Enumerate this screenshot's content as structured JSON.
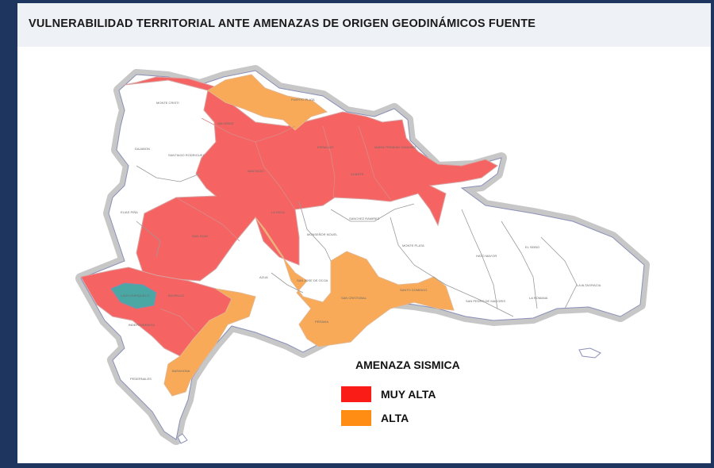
{
  "header": {
    "title": "VULNERABILIDAD TERRITORIAL ANTE AMENAZAS DE ORIGEN GEODINÁMICOS FUENTE"
  },
  "legend": {
    "title": "AMENAZA SISMICA",
    "items": [
      {
        "label": "MUY ALTA",
        "color": "#fa1c17"
      },
      {
        "label": "ALTA",
        "color": "#ff8c13"
      }
    ]
  },
  "map": {
    "colors": {
      "muy_alta_fill": "#f56462",
      "alta_fill": "#f8aa58",
      "other_fill": "#ffffff",
      "lake_fill": "#4aa7a4",
      "coast_halo": "#c7c7c7"
    },
    "province_labels": [
      "MONTE CRISTI",
      "PUERTO PLATA",
      "VALVERDE",
      "ESPAILLAT",
      "MARIA TRINIDAD SANCHEZ",
      "DAJABON",
      "SANTIAGO RODRIGUEZ",
      "SANTIAGO",
      "DUARTE",
      "LA VEGA",
      "MONSEÑOR NOUEL",
      "SANCHEZ RAMIREZ",
      "SAN JUAN",
      "AZUA",
      "SAN JOSE DE OCOA",
      "MONTE PLATA",
      "HATO MAYOR",
      "EL SEIBO",
      "LA ALTAGRACIA",
      "SAN CRISTOBAL",
      "PERAVIA",
      "SANTO DOMINGO",
      "SAN PEDRO DE MACORIS",
      "LA ROMANA",
      "BAORUCO",
      "INDEPENDENCIA",
      "BARAHONA",
      "PEDERNALES",
      "ELIAS PIÑA",
      "LAGO ENRIQUILLO"
    ]
  }
}
